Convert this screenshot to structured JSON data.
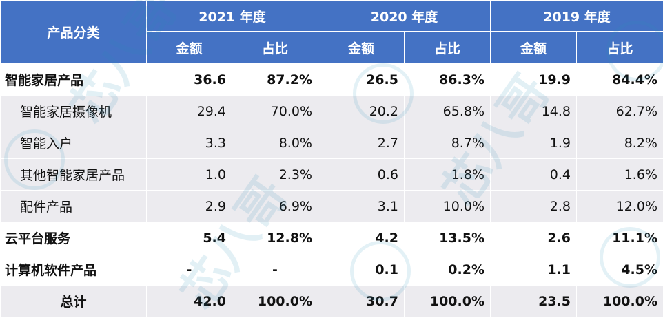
{
  "header": {
    "category_label": "产品分类",
    "years": [
      "2021 年度",
      "2020 年度",
      "2019 年度"
    ],
    "amount_label": "金额",
    "share_label": "占比"
  },
  "rows": [
    {
      "label": "智能家居产品",
      "values": [
        "36.6",
        "87.2%",
        "26.5",
        "86.3%",
        "19.9",
        "84.4%"
      ]
    },
    {
      "label": "智能家居摄像机",
      "values": [
        "29.4",
        "70.0%",
        "20.2",
        "65.8%",
        "14.8",
        "62.7%"
      ]
    },
    {
      "label": "智能入户",
      "values": [
        "3.3",
        "8.0%",
        "2.7",
        "8.7%",
        "1.9",
        "8.2%"
      ]
    },
    {
      "label": "其他智能家居产品",
      "values": [
        "1.0",
        "2.3%",
        "0.6",
        "1.8%",
        "0.4",
        "1.6%"
      ]
    },
    {
      "label": "配件产品",
      "values": [
        "2.9",
        "6.9%",
        "3.1",
        "10.0%",
        "2.8",
        "12.0%"
      ]
    },
    {
      "label": "云平台服务",
      "values": [
        "5.4",
        "12.8%",
        "4.2",
        "13.5%",
        "2.6",
        "11.1%"
      ]
    },
    {
      "label": "计算机软件产品",
      "values": [
        "-",
        "-",
        "0.1",
        "0.2%",
        "1.1",
        "4.5%"
      ]
    },
    {
      "label": "总计",
      "values": [
        "42.0",
        "100.0%",
        "30.7",
        "100.0%",
        "23.5",
        "100.0%"
      ]
    }
  ],
  "watermark": {
    "text": "芯八哥",
    "icon": "pen-nib-icon",
    "color": "#2a8fb8"
  },
  "colors": {
    "header_bg": "#4472c4",
    "header_text": "#ffffff",
    "stripe_bg": "#ecebef"
  }
}
